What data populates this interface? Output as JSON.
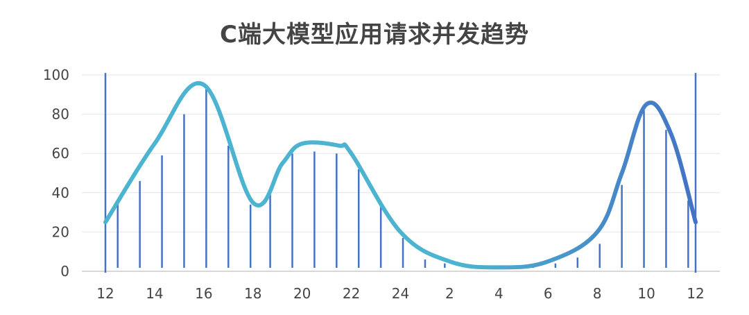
{
  "chart_data": {
    "type": "line",
    "title": "C端大模型应用请求并发趋势",
    "xlabel": "",
    "ylabel": "",
    "ylim": [
      0,
      100
    ],
    "yticks": [
      0,
      20,
      40,
      60,
      80,
      100
    ],
    "x_tick_labels": [
      "12",
      "14",
      "16",
      "18",
      "20",
      "22",
      "24",
      "2",
      "4",
      "6",
      "8",
      "10",
      "12"
    ],
    "grid": true,
    "legend": "none",
    "colors": {
      "line_start": "#4cb4d0",
      "line_end": "#4472c4",
      "bars": "#4472c4",
      "grid": "#e6e6e6",
      "axis": "#cccccc",
      "text": "#444444"
    },
    "series": [
      {
        "values": [
          {
            "x": 12,
            "y": 25
          },
          {
            "x": 14,
            "y": 65
          },
          {
            "x": 16,
            "y": 95
          },
          {
            "x": 18,
            "y": 35
          },
          {
            "x": 19.2,
            "y": 55
          },
          {
            "x": 20,
            "y": 65
          },
          {
            "x": 21.5,
            "y": 64
          },
          {
            "x": 22,
            "y": 60
          },
          {
            "x": 24,
            "y": 20
          },
          {
            "x": 26,
            "y": 5
          },
          {
            "x": 28,
            "y": 2
          },
          {
            "x": 30,
            "y": 5
          },
          {
            "x": 32,
            "y": 20
          },
          {
            "x": 33,
            "y": 50
          },
          {
            "x": 34,
            "y": 85
          },
          {
            "x": 35,
            "y": 70
          },
          {
            "x": 36,
            "y": 25
          }
        ]
      }
    ],
    "bars": [
      {
        "x": 12,
        "y": 101
      },
      {
        "x": 12.5,
        "y": 35
      },
      {
        "x": 13.4,
        "y": 46
      },
      {
        "x": 14.3,
        "y": 59
      },
      {
        "x": 15.2,
        "y": 80
      },
      {
        "x": 16.1,
        "y": 93
      },
      {
        "x": 17,
        "y": 64
      },
      {
        "x": 17.9,
        "y": 34
      },
      {
        "x": 18.7,
        "y": 42
      },
      {
        "x": 19.6,
        "y": 60
      },
      {
        "x": 20.5,
        "y": 61
      },
      {
        "x": 21.4,
        "y": 60
      },
      {
        "x": 22.3,
        "y": 52
      },
      {
        "x": 23.2,
        "y": 33
      },
      {
        "x": 24.1,
        "y": 17
      },
      {
        "x": 25,
        "y": 6
      },
      {
        "x": 25.8,
        "y": 4
      },
      {
        "x": 26.7,
        "y": 2
      },
      {
        "x": 27.6,
        "y": 2
      },
      {
        "x": 28.5,
        "y": 2
      },
      {
        "x": 29.4,
        "y": 3
      },
      {
        "x": 30.3,
        "y": 4
      },
      {
        "x": 31.2,
        "y": 7
      },
      {
        "x": 32.1,
        "y": 14
      },
      {
        "x": 33,
        "y": 44
      },
      {
        "x": 33.9,
        "y": 82
      },
      {
        "x": 34.8,
        "y": 72
      },
      {
        "x": 35.7,
        "y": 36
      },
      {
        "x": 36,
        "y": 101
      }
    ]
  }
}
